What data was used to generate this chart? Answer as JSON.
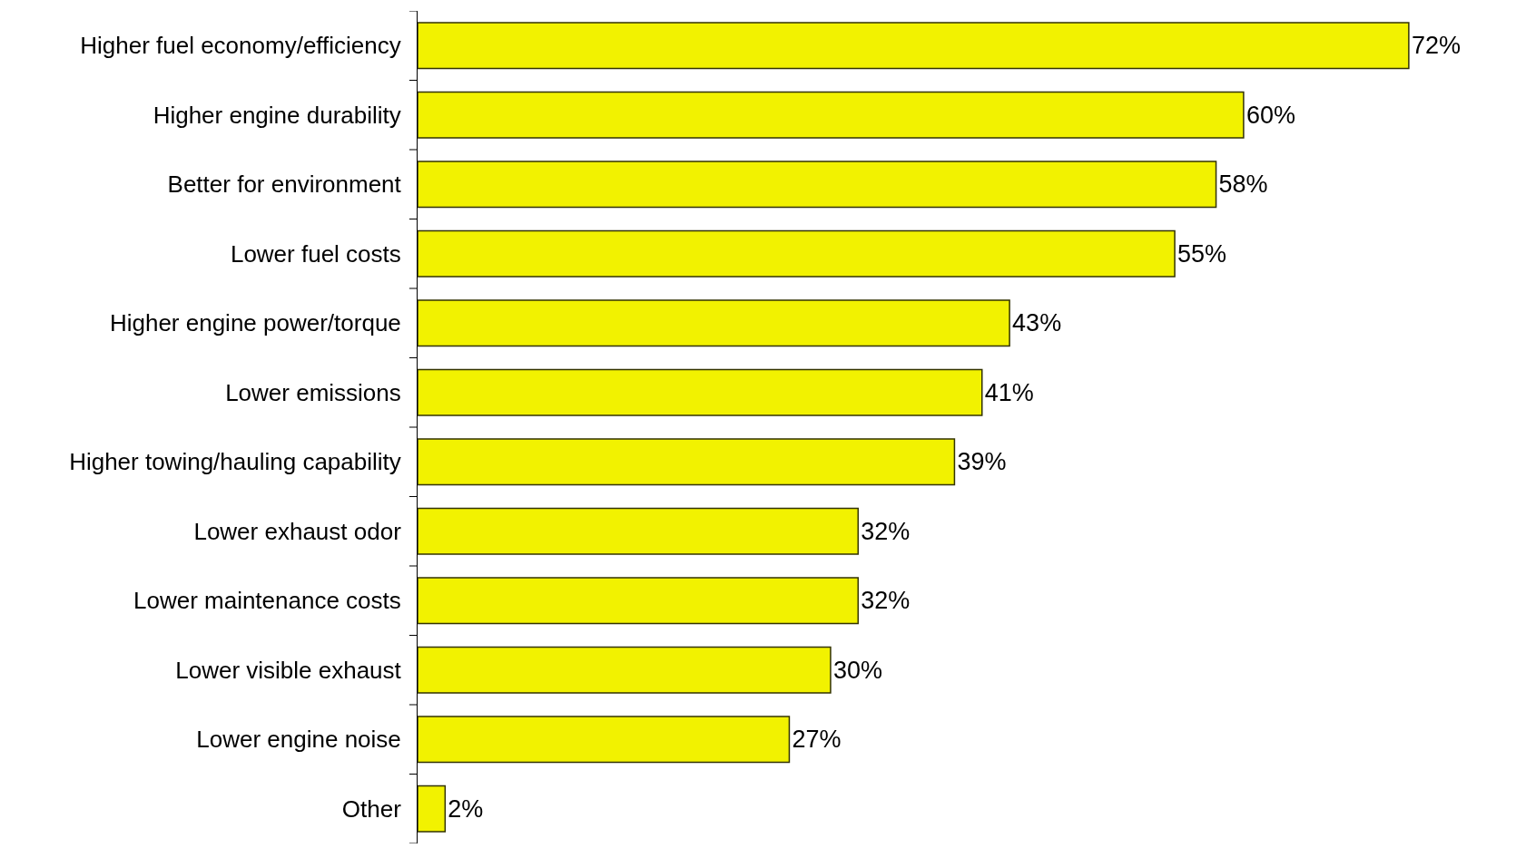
{
  "chart_data": {
    "type": "bar",
    "orientation": "horizontal",
    "categories": [
      "Higher fuel economy/efficiency",
      "Higher engine durability",
      "Better for environment",
      "Lower fuel costs",
      "Higher engine power/torque",
      "Lower emissions",
      "Higher towing/hauling capability",
      "Lower exhaust odor",
      "Lower maintenance costs",
      "Lower visible exhaust",
      "Lower engine noise",
      "Other"
    ],
    "values": [
      72,
      60,
      58,
      55,
      43,
      41,
      39,
      32,
      32,
      30,
      27,
      2
    ],
    "value_labels": [
      "72%",
      "60%",
      "58%",
      "55%",
      "43%",
      "41%",
      "39%",
      "32%",
      "32%",
      "30%",
      "27%",
      "2%"
    ],
    "color": "#f2f200"
  }
}
